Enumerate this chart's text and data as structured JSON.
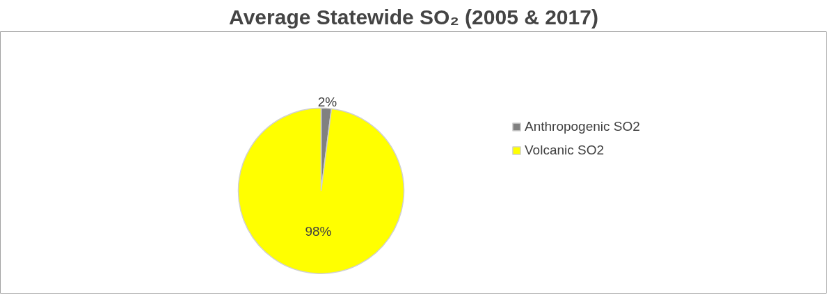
{
  "chart_data": {
    "type": "pie",
    "title": "Average Statewide SO₂ (2005 & 2017)",
    "categories": [
      "Anthropogenic SO2",
      "Volcanic SO2"
    ],
    "values": [
      2,
      98
    ],
    "colors": [
      "#808080",
      "#ffff00"
    ],
    "value_labels": [
      "2%",
      "98%"
    ],
    "legend": "right"
  }
}
